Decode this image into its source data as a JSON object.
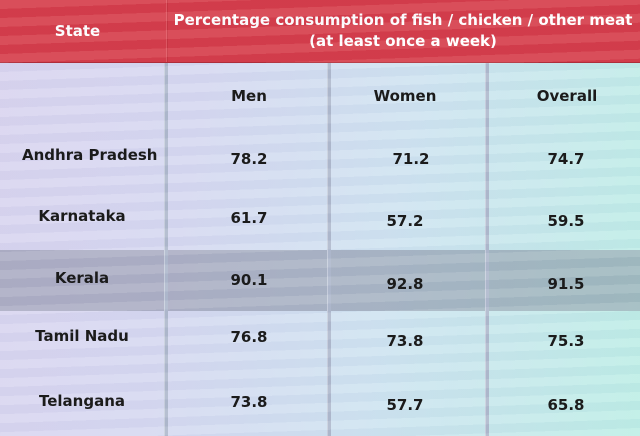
{
  "chart_data": {
    "type": "table",
    "columns": [
      "State",
      "Men",
      "Women",
      "Overall"
    ],
    "header": {
      "state": "State",
      "group_title": "Percentage consumption of fish / chicken / other meat\n(at least once a week)",
      "men": "Men",
      "women": "Women",
      "overall": "Overall"
    },
    "rows": [
      {
        "state": "Andhra Pradesh",
        "men": "78.2",
        "women": "71.2",
        "overall": "74.7",
        "highlight": false
      },
      {
        "state": "Karnataka",
        "men": "61.7",
        "women": "57.2",
        "overall": "59.5",
        "highlight": false
      },
      {
        "state": "Kerala",
        "men": "90.1",
        "women": "92.8",
        "overall": "91.5",
        "highlight": true
      },
      {
        "state": "Tamil Nadu",
        "men": "76.8",
        "women": "73.8",
        "overall": "75.3",
        "highlight": false
      },
      {
        "state": "Telangana",
        "men": "73.8",
        "women": "57.7",
        "overall": "65.8",
        "highlight": false
      }
    ]
  },
  "colors": {
    "header_bg": "#d53a47",
    "header_text": "#ffffff",
    "highlight_row": "#8c90a2",
    "body_gradient_start": "#d9d4ef",
    "body_gradient_end": "#bdeee6"
  }
}
